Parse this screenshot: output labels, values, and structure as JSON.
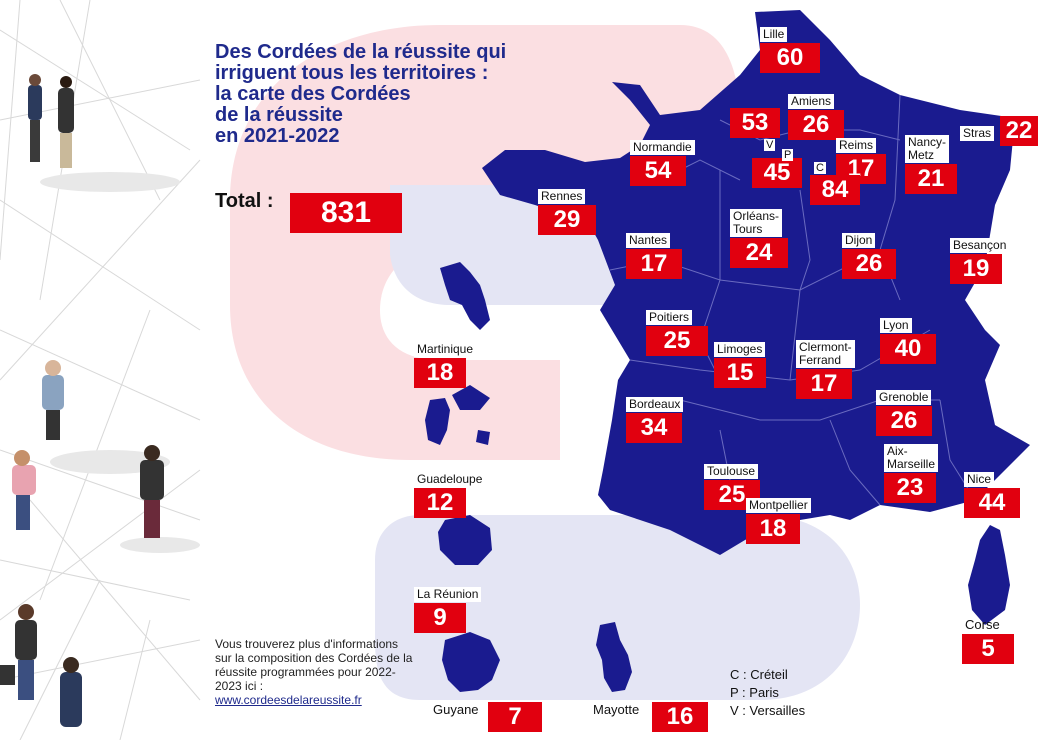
{
  "title": "Des Cordées de la réussite qui\nirriguent tous les territoires :\nla carte des Cordées\nde la réussite\nen 2021-2022",
  "total": {
    "label": "Total :",
    "value": "831"
  },
  "regions": [
    {
      "name": "Lille",
      "value": "60"
    },
    {
      "name": "Amiens",
      "value": "26"
    },
    {
      "name": "",
      "value": "53"
    },
    {
      "name": "Normandie",
      "value": "54"
    },
    {
      "name": "Reims",
      "value": "17"
    },
    {
      "name": "Nancy-\nMetz",
      "value": "21"
    },
    {
      "name": "Stras",
      "value": "22"
    },
    {
      "name": "",
      "value": "45"
    },
    {
      "name": "",
      "value": "84"
    },
    {
      "name": "Rennes",
      "value": "29"
    },
    {
      "name": "Nantes",
      "value": "17"
    },
    {
      "name": "Orléans-\nTours",
      "value": "24"
    },
    {
      "name": "Dijon",
      "value": "26"
    },
    {
      "name": "Besançon",
      "value": "19"
    },
    {
      "name": "Poitiers",
      "value": "25"
    },
    {
      "name": "Limoges",
      "value": "15"
    },
    {
      "name": "Clermont-\nFerrand",
      "value": "17"
    },
    {
      "name": "Lyon",
      "value": "40"
    },
    {
      "name": "Bordeaux",
      "value": "34"
    },
    {
      "name": "Grenoble",
      "value": "26"
    },
    {
      "name": "Toulouse",
      "value": "25"
    },
    {
      "name": "Aix-\nMarseille",
      "value": "23"
    },
    {
      "name": "Nice",
      "value": "44"
    },
    {
      "name": "Montpellier",
      "value": "18"
    },
    {
      "name": "Corse",
      "value": "5"
    },
    {
      "name": "Martinique",
      "value": "18"
    },
    {
      "name": "Guadeloupe",
      "value": "12"
    },
    {
      "name": "La Réunion",
      "value": "9"
    },
    {
      "name": "Guyane",
      "value": "7"
    },
    {
      "name": "Mayotte",
      "value": "16"
    }
  ],
  "paris_tags": {
    "v": "V",
    "p": "P",
    "c": "C"
  },
  "legend": [
    "C : Créteil",
    "P : Paris",
    "V : Versailles"
  ],
  "info": {
    "text": "Vous trouverez plus d'informations sur la composition des Cordées de la réussite programmées pour 2022-2023 ici :",
    "link": "www.cordeesdelareussite.fr"
  },
  "colors": {
    "map": "#1a1b8f",
    "accent": "#e1000f",
    "title": "#1f2a8c",
    "logo_pink": "#fbdfe2",
    "logo_lilac": "#e4e5f4"
  }
}
